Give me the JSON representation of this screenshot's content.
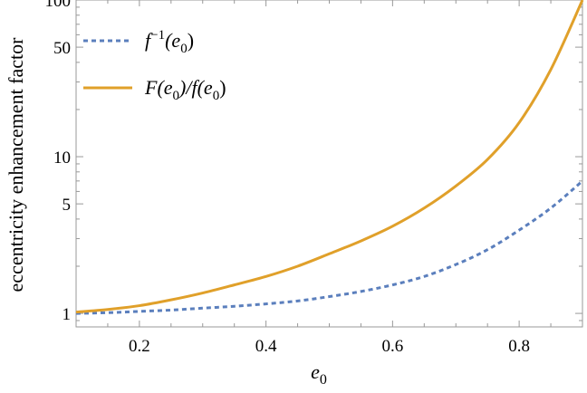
{
  "chart_data": {
    "type": "line",
    "xlabel": "e",
    "xlabel_sub": "0",
    "ylabel": "eccentricity enhancement factor",
    "xlim": [
      0.1,
      0.9
    ],
    "ylim": [
      0.82,
      100
    ],
    "yscale": "log",
    "grid": false,
    "legend_position": "top-left",
    "x_ticks": [
      0.2,
      0.4,
      0.6,
      0.8
    ],
    "x_tick_labels": [
      "0.2",
      "0.4",
      "0.6",
      "0.8"
    ],
    "y_ticks": [
      1,
      5,
      10,
      50,
      100
    ],
    "y_tick_labels": [
      "1",
      "5",
      "10",
      "50",
      "100"
    ],
    "series": [
      {
        "name": "f",
        "name_sup": "−1",
        "name_rest": "(e",
        "name_sub": "0",
        "name_close": ")",
        "color": "#5b7fbd",
        "style": "dashed",
        "x": [
          0.1,
          0.15,
          0.2,
          0.25,
          0.3,
          0.35,
          0.4,
          0.45,
          0.5,
          0.55,
          0.6,
          0.65,
          0.7,
          0.75,
          0.8,
          0.85,
          0.9
        ],
        "y": [
          1.0,
          1.01,
          1.03,
          1.05,
          1.08,
          1.11,
          1.15,
          1.2,
          1.28,
          1.38,
          1.52,
          1.72,
          2.05,
          2.55,
          3.4,
          4.7,
          7.0
        ]
      },
      {
        "name": "F(e",
        "name_sub": "0",
        "name_mid": ")/f(e",
        "name_sub2": "0",
        "name_close": ")",
        "color": "#e0a02a",
        "style": "solid",
        "x": [
          0.1,
          0.15,
          0.2,
          0.25,
          0.3,
          0.35,
          0.4,
          0.45,
          0.5,
          0.55,
          0.6,
          0.65,
          0.7,
          0.75,
          0.8,
          0.85,
          0.9
        ],
        "y": [
          1.02,
          1.06,
          1.12,
          1.22,
          1.35,
          1.52,
          1.72,
          2.0,
          2.4,
          2.9,
          3.6,
          4.7,
          6.5,
          9.6,
          16.5,
          36,
          100
        ]
      }
    ]
  }
}
